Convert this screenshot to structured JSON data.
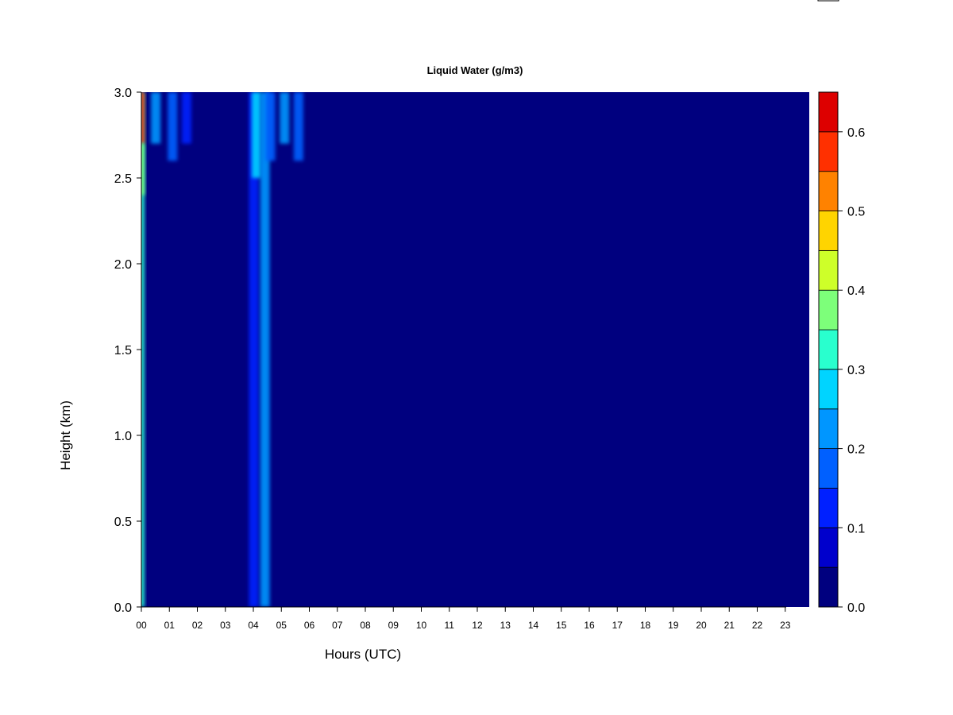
{
  "chart_data": {
    "type": "heatmap",
    "title": "Liquid Water (g/m3)",
    "xlabel": "Hours (UTC)",
    "ylabel": "Height (km)",
    "xlim": [
      0,
      24
    ],
    "ylim": [
      0.0,
      3.0
    ],
    "x_ticks": [
      "00",
      "01",
      "02",
      "03",
      "04",
      "05",
      "06",
      "07",
      "08",
      "09",
      "10",
      "11",
      "12",
      "13",
      "14",
      "15",
      "16",
      "17",
      "18",
      "19",
      "20",
      "21",
      "22",
      "23"
    ],
    "y_ticks": [
      "0.0",
      "0.5",
      "1.0",
      "1.5",
      "2.0",
      "2.5",
      "3.0"
    ],
    "colorbar": {
      "range": [
        0.0,
        0.65
      ],
      "ticks": [
        "0.0",
        "0.1",
        "0.2",
        "0.3",
        "0.4",
        "0.5",
        "0.6"
      ],
      "levels": [
        0.0,
        0.05,
        0.1,
        0.15,
        0.2,
        0.25,
        0.3,
        0.35,
        0.4,
        0.45,
        0.5,
        0.55,
        0.6,
        0.65
      ],
      "colors": [
        "#00007f",
        "#0000cc",
        "#0020ff",
        "#0060ff",
        "#0096ff",
        "#00d4ff",
        "#29ffce",
        "#7dff7a",
        "#ceff29",
        "#ffd400",
        "#ff8200",
        "#ff3000",
        "#dd0000",
        "#7f0000"
      ]
    },
    "background_value": 0.0,
    "features": [
      {
        "hour": 0.0,
        "h_bottom": 0.0,
        "h_top": 3.0,
        "value": 0.3
      },
      {
        "hour": 0.0,
        "h_bottom": 2.7,
        "h_top": 3.0,
        "value": 0.55
      },
      {
        "hour": 0.0,
        "h_bottom": 2.4,
        "h_top": 2.7,
        "value": 0.38
      },
      {
        "hour": 0.4,
        "h_bottom": 2.7,
        "h_top": 3.0,
        "value": 0.22
      },
      {
        "hour": 1.0,
        "h_bottom": 2.6,
        "h_top": 3.0,
        "value": 0.15
      },
      {
        "hour": 1.5,
        "h_bottom": 2.7,
        "h_top": 3.0,
        "value": 0.1
      },
      {
        "hour": 3.9,
        "h_bottom": 0.0,
        "h_top": 3.0,
        "value": 0.1
      },
      {
        "hour": 4.0,
        "h_bottom": 2.5,
        "h_top": 3.0,
        "value": 0.25
      },
      {
        "hour": 4.3,
        "h_bottom": 0.0,
        "h_top": 3.0,
        "value": 0.2
      },
      {
        "hour": 4.5,
        "h_bottom": 2.6,
        "h_top": 3.0,
        "value": 0.18
      },
      {
        "hour": 5.0,
        "h_bottom": 2.7,
        "h_top": 3.0,
        "value": 0.22
      },
      {
        "hour": 5.5,
        "h_bottom": 2.6,
        "h_top": 3.0,
        "value": 0.15
      }
    ]
  }
}
